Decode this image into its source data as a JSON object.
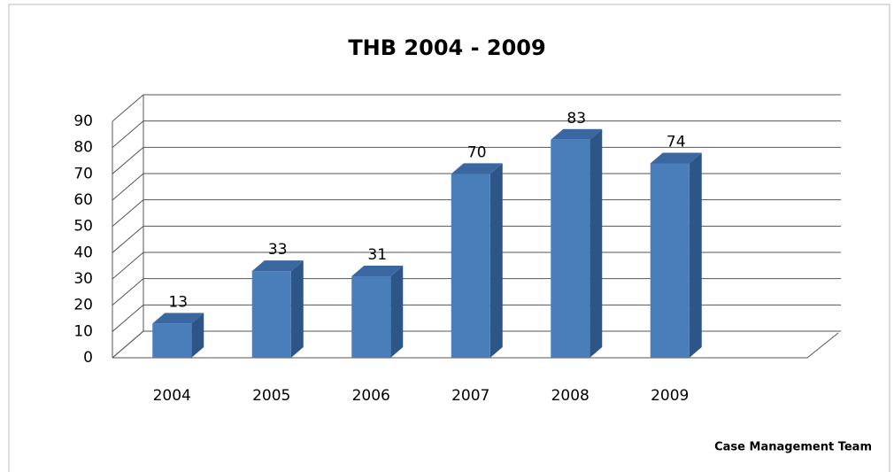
{
  "chart_data": {
    "type": "bar",
    "title": "THB 2004 - 2009",
    "categories": [
      "2004",
      "2005",
      "2006",
      "2007",
      "2008",
      "2009"
    ],
    "values": [
      13,
      33,
      31,
      70,
      83,
      74
    ],
    "color": "#4a7ebb",
    "ylim": [
      0,
      90
    ],
    "yticks": [
      0,
      10,
      20,
      30,
      40,
      50,
      60,
      70,
      80,
      90
    ],
    "grid": true,
    "footer": "Case Management Team"
  }
}
